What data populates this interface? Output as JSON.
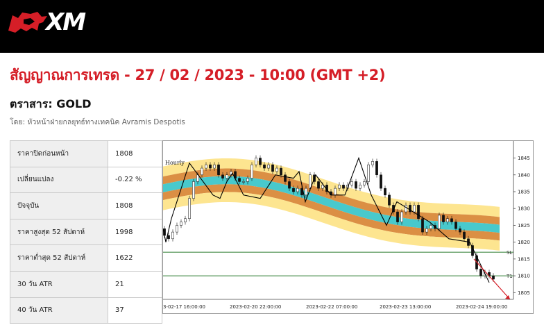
{
  "brand": {
    "logo_text": "XM"
  },
  "title": "สัญญาณการเทรด - 27 / 02 / 2023 - 10:00 (GMT +2)",
  "instrument": "ตราสาร: GOLD",
  "byline": "โดย: หัวหน้าฝ่ายกลยุทธ์ทางเทคนิค Avramis Despotis",
  "stats": [
    {
      "label": "ราคาปิดก่อนหน้า",
      "value": "1808"
    },
    {
      "label": "เปลี่ยนแปลง",
      "value": "-0.22 %"
    },
    {
      "label": "ปัจจุบัน",
      "value": "1808"
    },
    {
      "label": "ราคาสูงสุด 52 สัปดาห์",
      "value": "1998"
    },
    {
      "label": "ราคาต่ำสุด 52 สัปดาห์",
      "value": "1622"
    },
    {
      "label": "30 วัน ATR",
      "value": "21"
    },
    {
      "label": "40 วัน ATR",
      "value": "37"
    }
  ],
  "chart_data": {
    "type": "line",
    "timeframe_label": "Hourly",
    "x_tick_labels": [
      "3-02-17 16:00:00",
      "2023-02-20 22:00:00",
      "2023-02-22 07:00:00",
      "2023-02-23 13:00:00",
      "2023-02-24 19:00:00"
    ],
    "y_ticks": [
      1805,
      1810,
      1815,
      1820,
      1825,
      1830,
      1835,
      1840,
      1845
    ],
    "ylim": [
      1803,
      1848
    ],
    "levels": [
      {
        "name": "SL",
        "value": 1817,
        "color": "#2e7d32"
      },
      {
        "name": "T1",
        "value": 1810,
        "color": "#2e7d32"
      }
    ],
    "zigzag": [
      [
        0,
        1824
      ],
      [
        4,
        1820
      ],
      [
        12,
        1827
      ],
      [
        38,
        1843.5
      ],
      [
        72,
        1834
      ],
      [
        82,
        1833
      ],
      [
        92,
        1838
      ],
      [
        100,
        1840.5
      ],
      [
        116,
        1834
      ],
      [
        140,
        1833
      ],
      [
        162,
        1840
      ],
      [
        188,
        1839
      ],
      [
        196,
        1841
      ],
      [
        205,
        1832
      ],
      [
        220,
        1840
      ],
      [
        242,
        1834
      ],
      [
        262,
        1834
      ],
      [
        282,
        1845
      ],
      [
        300,
        1834
      ],
      [
        322,
        1825
      ],
      [
        337,
        1832
      ],
      [
        384,
        1826
      ],
      [
        412,
        1821
      ],
      [
        442,
        1820
      ],
      [
        470,
        1808
      ]
    ],
    "candles": [
      {
        "i": 0,
        "o": 1824,
        "c": 1822
      },
      {
        "i": 1,
        "o": 1822,
        "c": 1821
      },
      {
        "i": 2,
        "o": 1821,
        "c": 1823
      },
      {
        "i": 3,
        "o": 1823,
        "c": 1825
      },
      {
        "i": 4,
        "o": 1825,
        "c": 1826
      },
      {
        "i": 5,
        "o": 1826,
        "c": 1827
      },
      {
        "i": 6,
        "o": 1827,
        "c": 1833
      },
      {
        "i": 7,
        "o": 1833,
        "c": 1838
      },
      {
        "i": 8,
        "o": 1838,
        "c": 1840
      },
      {
        "i": 9,
        "o": 1840,
        "c": 1842
      },
      {
        "i": 10,
        "o": 1842,
        "c": 1843
      },
      {
        "i": 11,
        "o": 1843,
        "c": 1842
      },
      {
        "i": 12,
        "o": 1842,
        "c": 1843
      },
      {
        "i": 13,
        "o": 1843,
        "c": 1840
      },
      {
        "i": 14,
        "o": 1840,
        "c": 1839
      },
      {
        "i": 15,
        "o": 1839,
        "c": 1840
      },
      {
        "i": 16,
        "o": 1840,
        "c": 1841
      },
      {
        "i": 17,
        "o": 1841,
        "c": 1839
      },
      {
        "i": 18,
        "o": 1839,
        "c": 1838
      },
      {
        "i": 19,
        "o": 1838,
        "c": 1838
      },
      {
        "i": 20,
        "o": 1838,
        "c": 1839
      },
      {
        "i": 21,
        "o": 1839,
        "c": 1843
      },
      {
        "i": 22,
        "o": 1843,
        "c": 1845
      },
      {
        "i": 23,
        "o": 1845,
        "c": 1843
      },
      {
        "i": 24,
        "o": 1843,
        "c": 1842
      },
      {
        "i": 25,
        "o": 1842,
        "c": 1843
      },
      {
        "i": 26,
        "o": 1843,
        "c": 1841
      },
      {
        "i": 27,
        "o": 1841,
        "c": 1842
      },
      {
        "i": 28,
        "o": 1842,
        "c": 1840
      },
      {
        "i": 29,
        "o": 1840,
        "c": 1838
      },
      {
        "i": 30,
        "o": 1838,
        "c": 1836
      },
      {
        "i": 31,
        "o": 1836,
        "c": 1835
      },
      {
        "i": 32,
        "o": 1835,
        "c": 1836
      },
      {
        "i": 33,
        "o": 1836,
        "c": 1834
      },
      {
        "i": 34,
        "o": 1834,
        "c": 1836
      },
      {
        "i": 35,
        "o": 1836,
        "c": 1840
      },
      {
        "i": 36,
        "o": 1840,
        "c": 1838
      },
      {
        "i": 37,
        "o": 1838,
        "c": 1836
      },
      {
        "i": 38,
        "o": 1836,
        "c": 1837
      },
      {
        "i": 39,
        "o": 1837,
        "c": 1835
      },
      {
        "i": 40,
        "o": 1835,
        "c": 1834
      },
      {
        "i": 41,
        "o": 1834,
        "c": 1836
      },
      {
        "i": 42,
        "o": 1836,
        "c": 1837
      },
      {
        "i": 43,
        "o": 1837,
        "c": 1836
      },
      {
        "i": 44,
        "o": 1836,
        "c": 1837
      },
      {
        "i": 45,
        "o": 1837,
        "c": 1838
      },
      {
        "i": 46,
        "o": 1838,
        "c": 1836
      },
      {
        "i": 47,
        "o": 1836,
        "c": 1837
      },
      {
        "i": 48,
        "o": 1837,
        "c": 1838
      },
      {
        "i": 49,
        "o": 1838,
        "c": 1843
      },
      {
        "i": 50,
        "o": 1843,
        "c": 1844
      },
      {
        "i": 51,
        "o": 1844,
        "c": 1840
      },
      {
        "i": 52,
        "o": 1840,
        "c": 1836
      },
      {
        "i": 53,
        "o": 1836,
        "c": 1834
      },
      {
        "i": 54,
        "o": 1834,
        "c": 1831
      },
      {
        "i": 55,
        "o": 1831,
        "c": 1829
      },
      {
        "i": 56,
        "o": 1829,
        "c": 1826
      },
      {
        "i": 57,
        "o": 1826,
        "c": 1829
      },
      {
        "i": 58,
        "o": 1829,
        "c": 1831
      },
      {
        "i": 59,
        "o": 1831,
        "c": 1829
      },
      {
        "i": 60,
        "o": 1829,
        "c": 1831
      },
      {
        "i": 61,
        "o": 1831,
        "c": 1827
      },
      {
        "i": 62,
        "o": 1827,
        "c": 1823
      },
      {
        "i": 63,
        "o": 1823,
        "c": 1824
      },
      {
        "i": 64,
        "o": 1824,
        "c": 1825
      },
      {
        "i": 65,
        "o": 1825,
        "c": 1824
      },
      {
        "i": 66,
        "o": 1824,
        "c": 1828
      },
      {
        "i": 67,
        "o": 1828,
        "c": 1826
      },
      {
        "i": 68,
        "o": 1826,
        "c": 1827
      },
      {
        "i": 69,
        "o": 1827,
        "c": 1826
      },
      {
        "i": 70,
        "o": 1826,
        "c": 1824
      },
      {
        "i": 71,
        "o": 1824,
        "c": 1823
      },
      {
        "i": 72,
        "o": 1823,
        "c": 1821
      },
      {
        "i": 73,
        "o": 1821,
        "c": 1819
      },
      {
        "i": 74,
        "o": 1819,
        "c": 1816
      },
      {
        "i": 75,
        "o": 1816,
        "c": 1812
      },
      {
        "i": 76,
        "o": 1812,
        "c": 1810
      },
      {
        "i": 77,
        "o": 1810,
        "c": 1811
      },
      {
        "i": 78,
        "o": 1811,
        "c": 1810
      },
      {
        "i": 79,
        "o": 1810,
        "c": 1809
      }
    ],
    "arrow": {
      "from": [
        448,
        1815
      ],
      "to": [
        500,
        1803
      ]
    }
  }
}
